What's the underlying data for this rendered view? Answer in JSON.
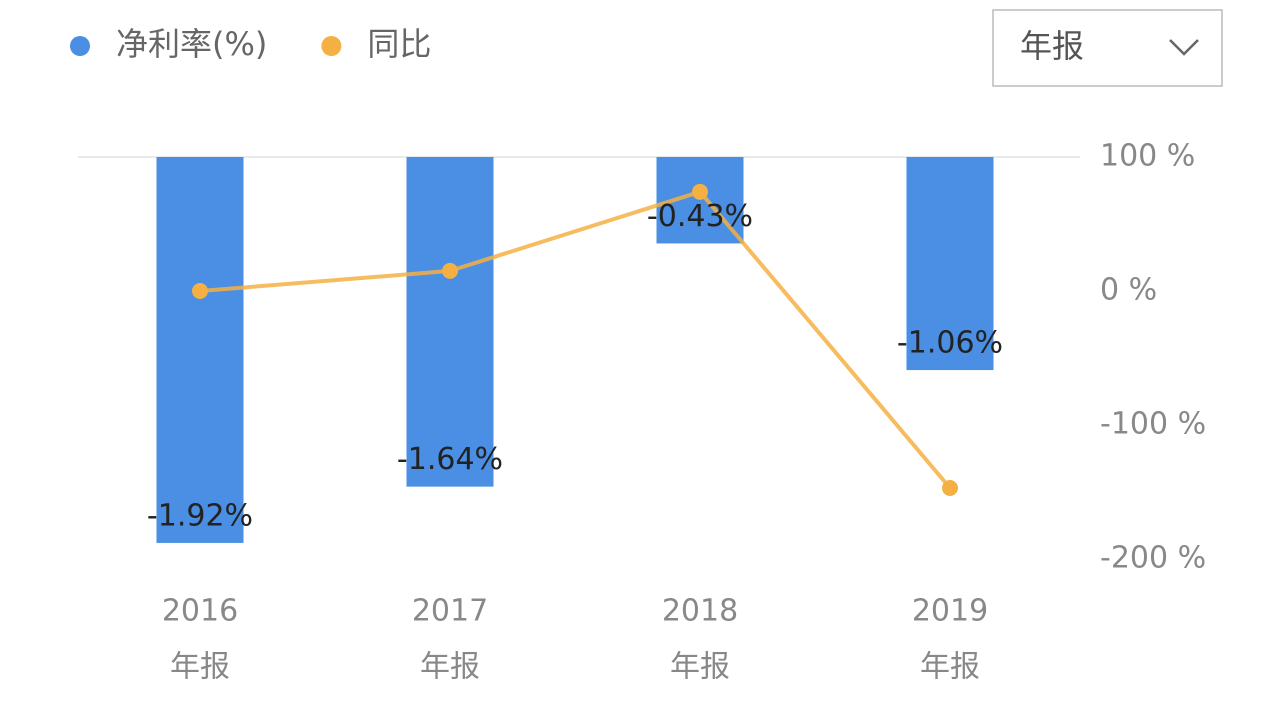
{
  "controls": {
    "dropdown": "年报"
  },
  "chart_data": {
    "type": "bar-line",
    "categories": [
      [
        "2016",
        "年报"
      ],
      [
        "2017",
        "年报"
      ],
      [
        "2018",
        "年报"
      ],
      [
        "2019",
        "年报"
      ]
    ],
    "series": [
      {
        "name": "净利率(%)",
        "type": "bar",
        "color": "#4a8fe3",
        "values": [
          -1.92,
          -1.64,
          -0.43,
          -1.06
        ],
        "value_labels": [
          "-1.92%",
          "-1.64%",
          "-0.43%",
          "-1.06%"
        ]
      },
      {
        "name": "同比",
        "type": "line",
        "axis": "y2",
        "color": "#f5b043",
        "values": [
          0,
          15,
          74,
          -147
        ]
      }
    ],
    "ylim": [
      -2,
      0
    ],
    "y2lim": [
      -200,
      100
    ],
    "y2ticks": [
      {
        "value": 100,
        "label": "100 %"
      },
      {
        "value": 0,
        "label": "0 %"
      },
      {
        "value": -100,
        "label": "-100 %"
      },
      {
        "value": -200,
        "label": "-200 %"
      }
    ]
  }
}
